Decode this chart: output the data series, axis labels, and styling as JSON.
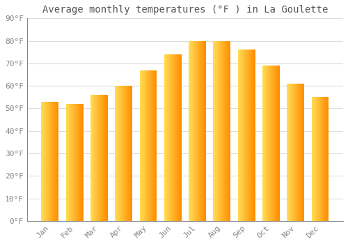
{
  "title": "Average monthly temperatures (°F ) in La Goulette",
  "months": [
    "Jan",
    "Feb",
    "Mar",
    "Apr",
    "May",
    "Jun",
    "Jul",
    "Aug",
    "Sep",
    "Oct",
    "Nov",
    "Dec"
  ],
  "values": [
    53,
    52,
    56,
    60,
    67,
    74,
    80,
    80,
    76,
    69,
    61,
    55
  ],
  "bar_color_left": "#FFDD55",
  "bar_color_right": "#FF8C00",
  "background_color": "#FFFFFF",
  "ylim": [
    0,
    90
  ],
  "yticks": [
    0,
    10,
    20,
    30,
    40,
    50,
    60,
    70,
    80,
    90
  ],
  "ytick_labels": [
    "0°F",
    "10°F",
    "20°F",
    "30°F",
    "40°F",
    "50°F",
    "60°F",
    "70°F",
    "80°F",
    "90°F"
  ],
  "grid_color": "#dddddd",
  "tick_label_color": "#888888",
  "title_color": "#555555",
  "title_fontsize": 10,
  "tick_fontsize": 8,
  "bar_width": 0.7,
  "n_gradient_steps": 50
}
